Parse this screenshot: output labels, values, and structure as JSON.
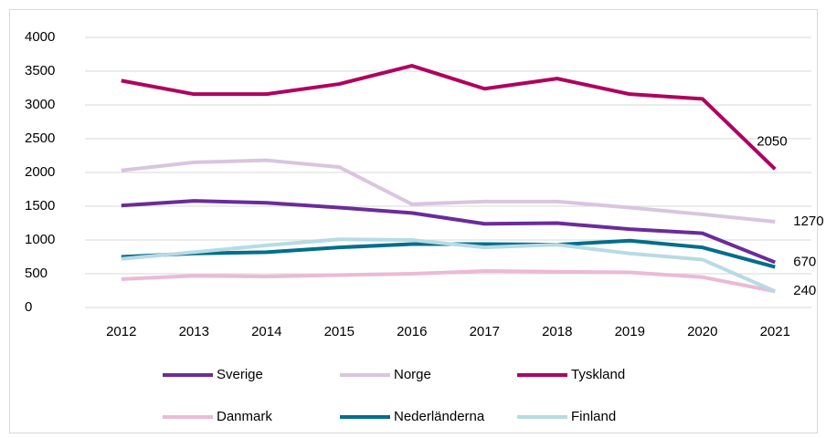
{
  "chart_data": {
    "type": "line",
    "categories": [
      "2012",
      "2013",
      "2014",
      "2015",
      "2016",
      "2017",
      "2018",
      "2019",
      "2020",
      "2021"
    ],
    "series": [
      {
        "name": "Sverige",
        "color": "#6a2c9a",
        "values": [
          1510,
          1580,
          1550,
          1480,
          1400,
          1240,
          1250,
          1160,
          1100,
          670
        ],
        "show_last_label": true
      },
      {
        "name": "Norge",
        "color": "#d9c5e0",
        "values": [
          2030,
          2150,
          2180,
          2080,
          1530,
          1570,
          1570,
          1480,
          1380,
          1270
        ],
        "show_last_label": true
      },
      {
        "name": "Tyskland",
        "color": "#b0005e",
        "values": [
          3360,
          3160,
          3160,
          3310,
          3580,
          3240,
          3390,
          3160,
          3090,
          2050
        ],
        "show_last_label": true
      },
      {
        "name": "Danmark",
        "color": "#ebbad5",
        "values": [
          420,
          470,
          460,
          480,
          500,
          540,
          530,
          520,
          450,
          240
        ],
        "show_last_label": false
      },
      {
        "name": "Nederländerna",
        "color": "#006e8c",
        "values": [
          750,
          800,
          820,
          890,
          940,
          940,
          930,
          990,
          890,
          600
        ],
        "show_last_label": false
      },
      {
        "name": "Finland",
        "color": "#b7dbe3",
        "values": [
          720,
          820,
          920,
          1010,
          1000,
          890,
          930,
          800,
          710,
          240
        ],
        "show_last_label": true
      }
    ],
    "ylim": [
      0,
      4000
    ],
    "yticks": [
      0,
      500,
      1000,
      1500,
      2000,
      2500,
      3000,
      3500,
      4000
    ],
    "grid": true,
    "legend": "bottom"
  }
}
